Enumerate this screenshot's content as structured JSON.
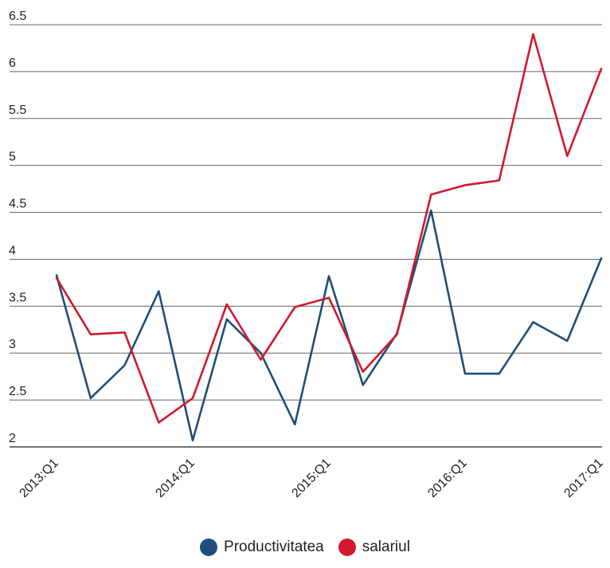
{
  "chart_data": {
    "type": "line",
    "title": "",
    "xlabel": "",
    "ylabel": "",
    "ylim": [
      2,
      6.5
    ],
    "yticks": [
      "2",
      "2.5",
      "3",
      "3.5",
      "4",
      "4.5",
      "5",
      "5.5",
      "6",
      "6.5"
    ],
    "x": [
      "2013:Q1",
      "2013:Q2",
      "2013:Q3",
      "2013:Q4",
      "2014:Q1",
      "2014:Q2",
      "2014:Q3",
      "2014:Q4",
      "2015:Q1",
      "2015:Q2",
      "2015:Q3",
      "2015:Q4",
      "2016:Q1",
      "2016:Q2",
      "2016:Q3",
      "2016:Q4",
      "2017:Q1"
    ],
    "xtick_labels": [
      "2013:Q1",
      "2014:Q1",
      "2015:Q1",
      "2016:Q1",
      "2017:Q1"
    ],
    "grid": true,
    "legend_position": "bottom",
    "series": [
      {
        "name": "Productivitatea",
        "color": "#1f4e79",
        "values": [
          3.83,
          2.52,
          2.87,
          3.66,
          2.07,
          3.36,
          3.0,
          2.24,
          3.82,
          2.66,
          3.21,
          4.52,
          2.78,
          2.78,
          3.33,
          3.13,
          4.01
        ]
      },
      {
        "name": "salariul",
        "color": "#d0192b",
        "values": [
          3.8,
          3.2,
          3.22,
          2.26,
          2.52,
          3.52,
          2.93,
          3.49,
          3.59,
          2.8,
          3.2,
          4.69,
          4.79,
          4.84,
          6.4,
          5.1,
          6.03
        ]
      }
    ]
  }
}
